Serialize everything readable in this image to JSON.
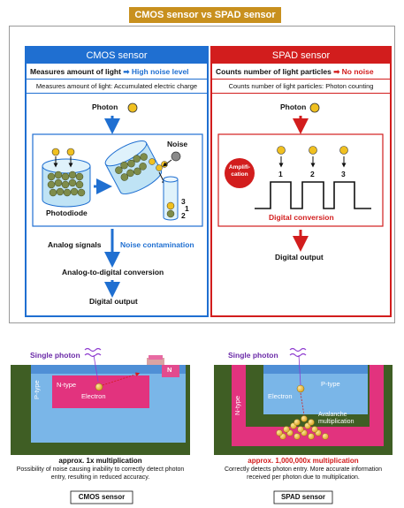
{
  "title": "CMOS sensor vs SPAD sensor",
  "cmos": {
    "header": "CMOS sensor",
    "measure_label": "Measures amount of light",
    "noise_label": "High noise level",
    "sub_label": "Measures amount of light: Accumulated electric charge",
    "photon": "Photon",
    "noise": "Noise",
    "photodiode": "Photodiode",
    "bucket_numbers": [
      "3",
      "1",
      "2"
    ],
    "analog_signals": "Analog signals",
    "noise_contamination": "Noise contamination",
    "conversion": "Analog-to-digital conversion",
    "digital_output": "Digital output",
    "colors": {
      "accent": "#1f6fd1",
      "electron": "#7e8c4a"
    }
  },
  "spad": {
    "header": "SPAD sensor",
    "count_label": "Counts number of light particles",
    "noise_label": "No noise",
    "sub_label": "Counts number of light particles: Photon counting",
    "photon": "Photon",
    "amplification": "Amplifi-cation",
    "pulse_numbers": [
      "1",
      "2",
      "3"
    ],
    "digital_conversion": "Digital conversion",
    "digital_output": "Digital output",
    "colors": {
      "accent": "#d21d1d",
      "photon": "#f0c020"
    }
  },
  "cmos_cross": {
    "single_photon": "Single photon",
    "p_type": "P-type",
    "n_type": "N-type",
    "electron": "Electron",
    "n_label": "N",
    "multiplication": "approx. 1x multiplication",
    "description": "Possibility of noise causing inability to correctly detect photon entry, resulting in reduced accuracy.",
    "caption": "CMOS sensor"
  },
  "spad_cross": {
    "single_photon": "Single photon",
    "electron": "Electron",
    "p_type": "P-type",
    "n_type": "N-type",
    "avalanche": "Avalanche multiplication",
    "multiplication": "approx. 1,000,000x multiplication",
    "description": "Correctly detects photon entry. More accurate information received per photon due to multiplication.",
    "caption": "SPAD sensor"
  }
}
